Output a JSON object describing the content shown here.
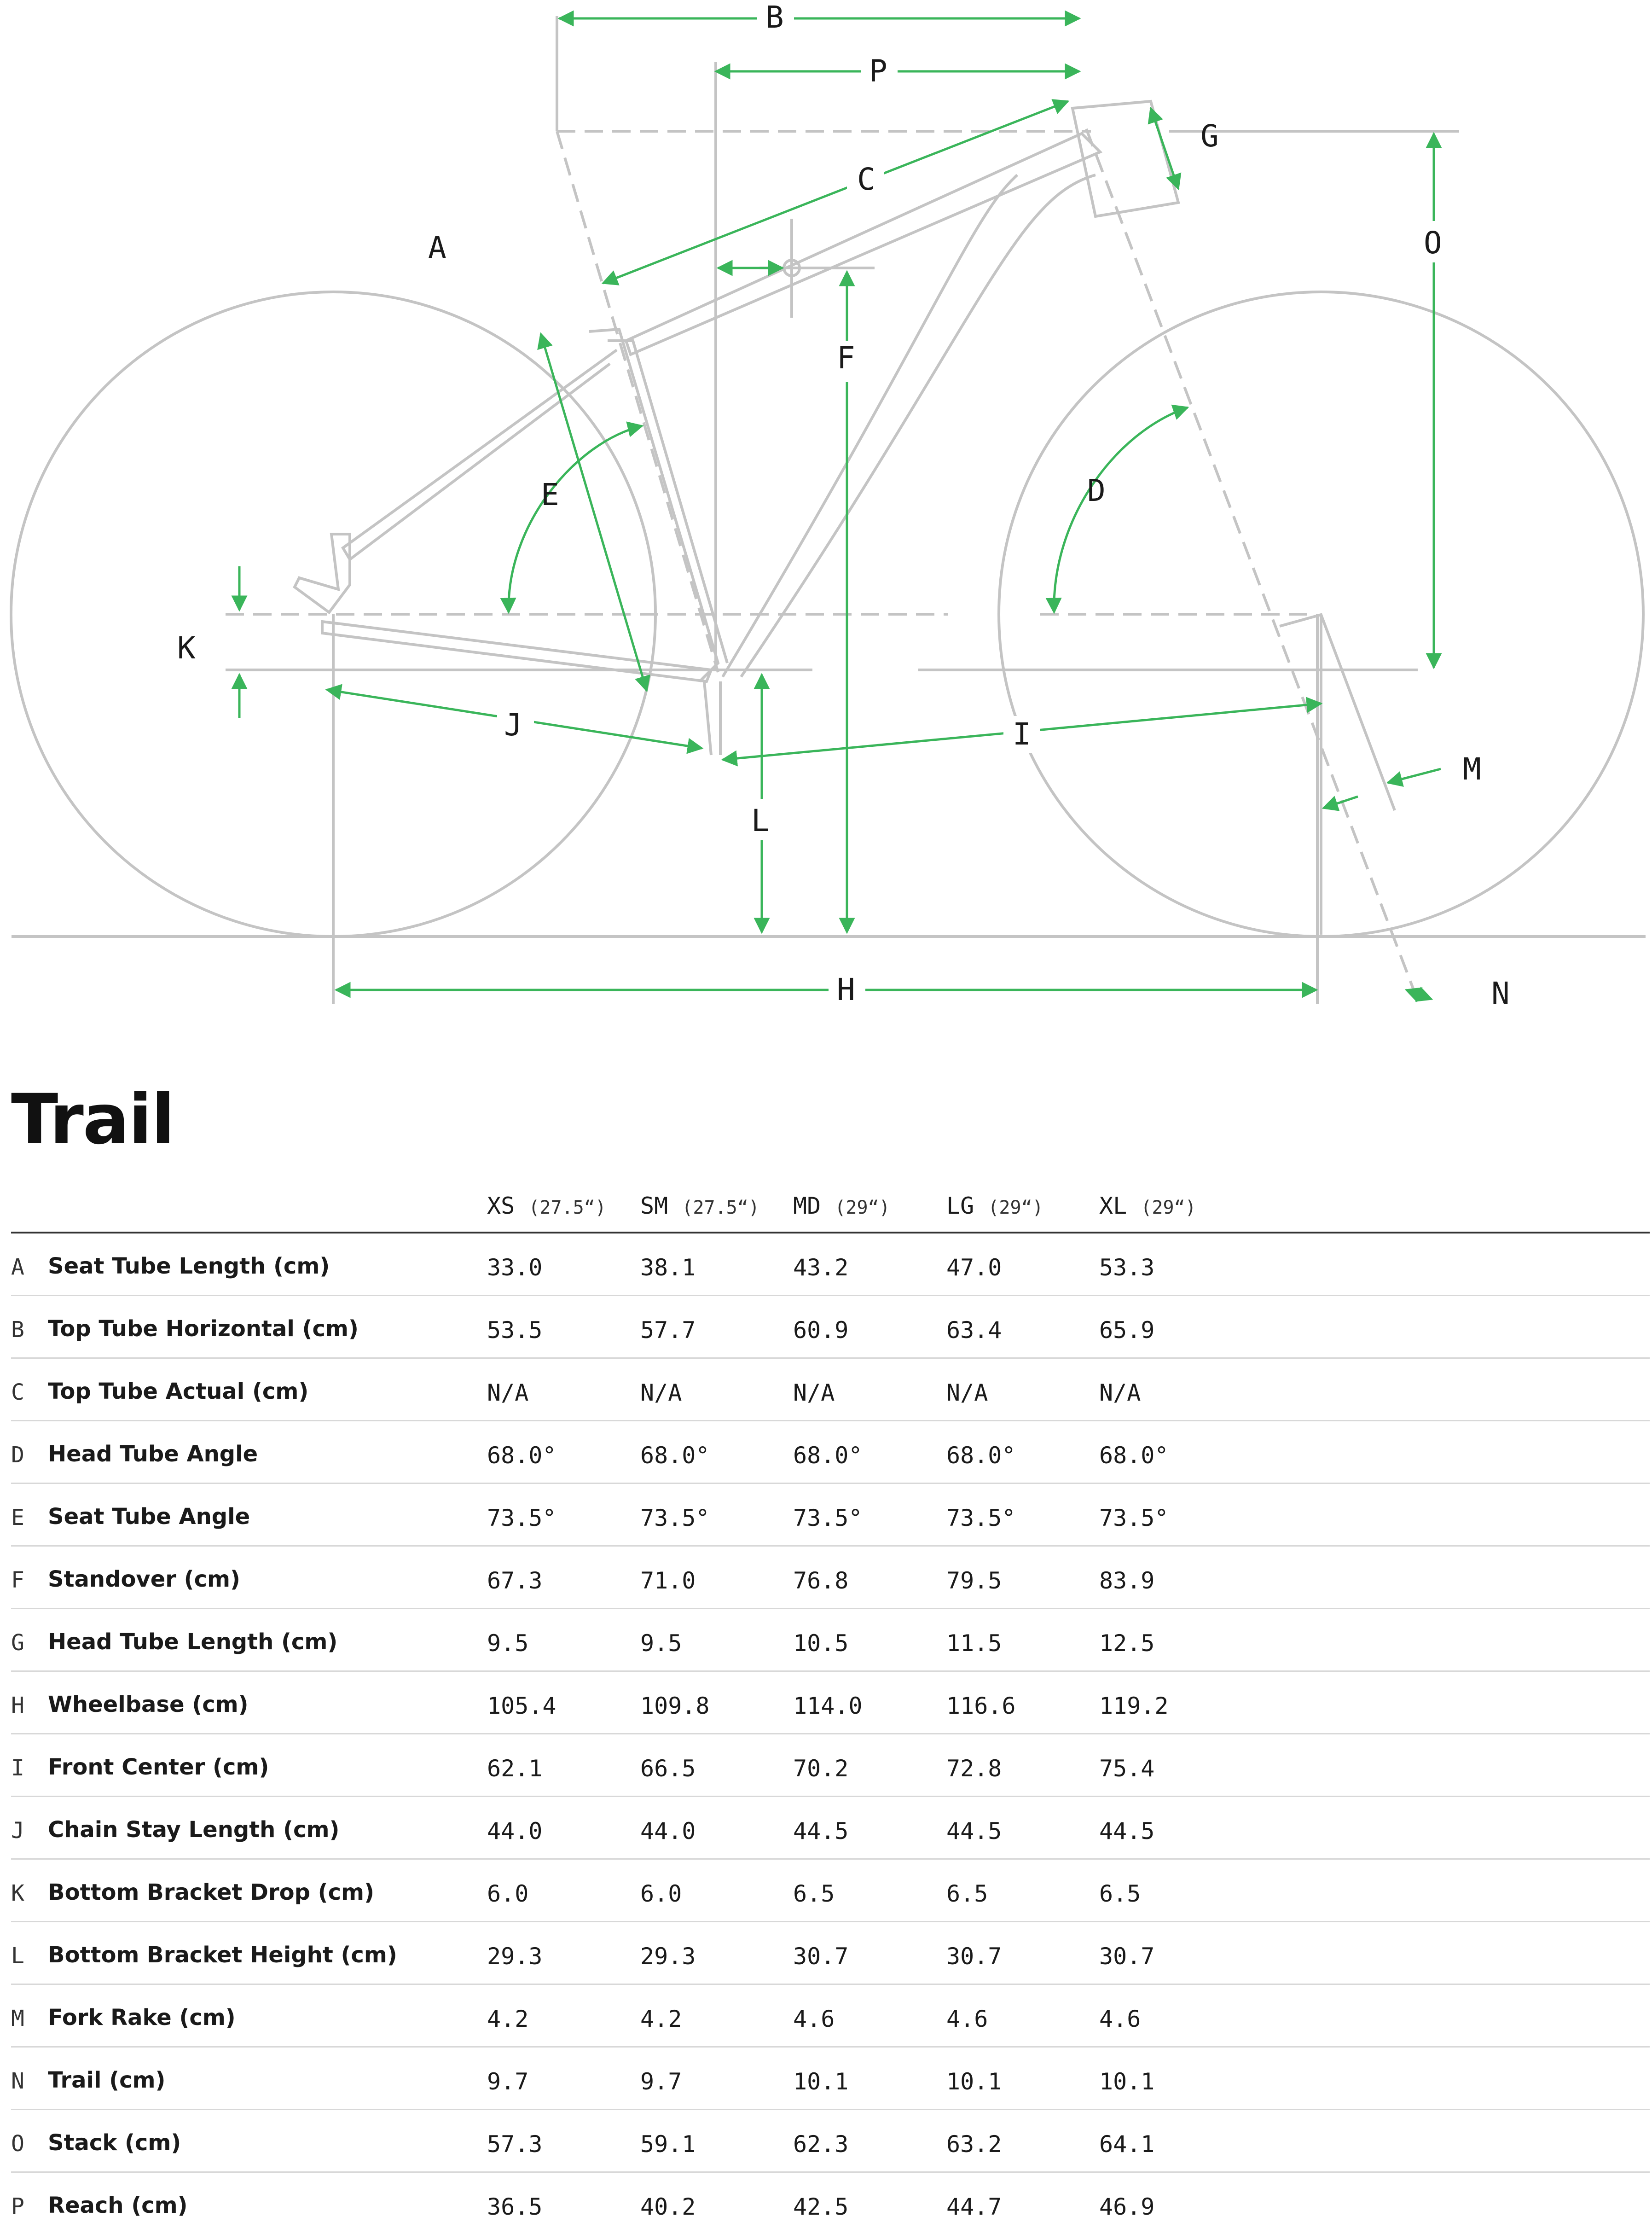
{
  "diagram": {
    "labels": {
      "A": "A",
      "B": "B",
      "C": "C",
      "D": "D",
      "E": "E",
      "F": "F",
      "G": "G",
      "H": "H",
      "I": "I",
      "J": "J",
      "K": "K",
      "L": "L",
      "M": "M",
      "N": "N",
      "O": "O",
      "P": "P"
    },
    "line_color": "#c4c4c4",
    "dimension_color": "#3ab55a"
  },
  "title": "Trail",
  "table": {
    "headers": [
      {
        "size": "XS",
        "wheel": "(27.5“)"
      },
      {
        "size": "SM",
        "wheel": "(27.5“)"
      },
      {
        "size": "MD",
        "wheel": "(29“)"
      },
      {
        "size": "LG",
        "wheel": "(29“)"
      },
      {
        "size": "XL",
        "wheel": "(29“)"
      }
    ],
    "rows": [
      {
        "letter": "A",
        "label": "Seat Tube Length (cm)",
        "values": [
          "33.0",
          "38.1",
          "43.2",
          "47.0",
          "53.3"
        ]
      },
      {
        "letter": "B",
        "label": "Top Tube Horizontal (cm)",
        "values": [
          "53.5",
          "57.7",
          "60.9",
          "63.4",
          "65.9"
        ]
      },
      {
        "letter": "C",
        "label": "Top Tube Actual (cm)",
        "values": [
          "N/A",
          "N/A",
          "N/A",
          "N/A",
          "N/A"
        ]
      },
      {
        "letter": "D",
        "label": "Head Tube Angle",
        "values": [
          "68.0°",
          "68.0°",
          "68.0°",
          "68.0°",
          "68.0°"
        ]
      },
      {
        "letter": "E",
        "label": "Seat Tube Angle",
        "values": [
          "73.5°",
          "73.5°",
          "73.5°",
          "73.5°",
          "73.5°"
        ]
      },
      {
        "letter": "F",
        "label": "Standover (cm)",
        "values": [
          "67.3",
          "71.0",
          "76.8",
          "79.5",
          "83.9"
        ]
      },
      {
        "letter": "G",
        "label": "Head Tube Length (cm)",
        "values": [
          "9.5",
          "9.5",
          "10.5",
          "11.5",
          "12.5"
        ]
      },
      {
        "letter": "H",
        "label": "Wheelbase (cm)",
        "values": [
          "105.4",
          "109.8",
          "114.0",
          "116.6",
          "119.2"
        ]
      },
      {
        "letter": "I",
        "label": "Front Center (cm)",
        "values": [
          "62.1",
          "66.5",
          "70.2",
          "72.8",
          "75.4"
        ]
      },
      {
        "letter": "J",
        "label": "Chain Stay Length (cm)",
        "values": [
          "44.0",
          "44.0",
          "44.5",
          "44.5",
          "44.5"
        ]
      },
      {
        "letter": "K",
        "label": "Bottom Bracket Drop (cm)",
        "values": [
          "6.0",
          "6.0",
          "6.5",
          "6.5",
          "6.5"
        ]
      },
      {
        "letter": "L",
        "label": "Bottom Bracket Height (cm)",
        "values": [
          "29.3",
          "29.3",
          "30.7",
          "30.7",
          "30.7"
        ]
      },
      {
        "letter": "M",
        "label": "Fork Rake (cm)",
        "values": [
          "4.2",
          "4.2",
          "4.6",
          "4.6",
          "4.6"
        ]
      },
      {
        "letter": "N",
        "label": "Trail (cm)",
        "values": [
          "9.7",
          "9.7",
          "10.1",
          "10.1",
          "10.1"
        ]
      },
      {
        "letter": "O",
        "label": "Stack (cm)",
        "values": [
          "57.3",
          "59.1",
          "62.3",
          "63.2",
          "64.1"
        ]
      },
      {
        "letter": "P",
        "label": "Reach (cm)",
        "values": [
          "36.5",
          "40.2",
          "42.5",
          "44.7",
          "46.9"
        ]
      }
    ]
  }
}
